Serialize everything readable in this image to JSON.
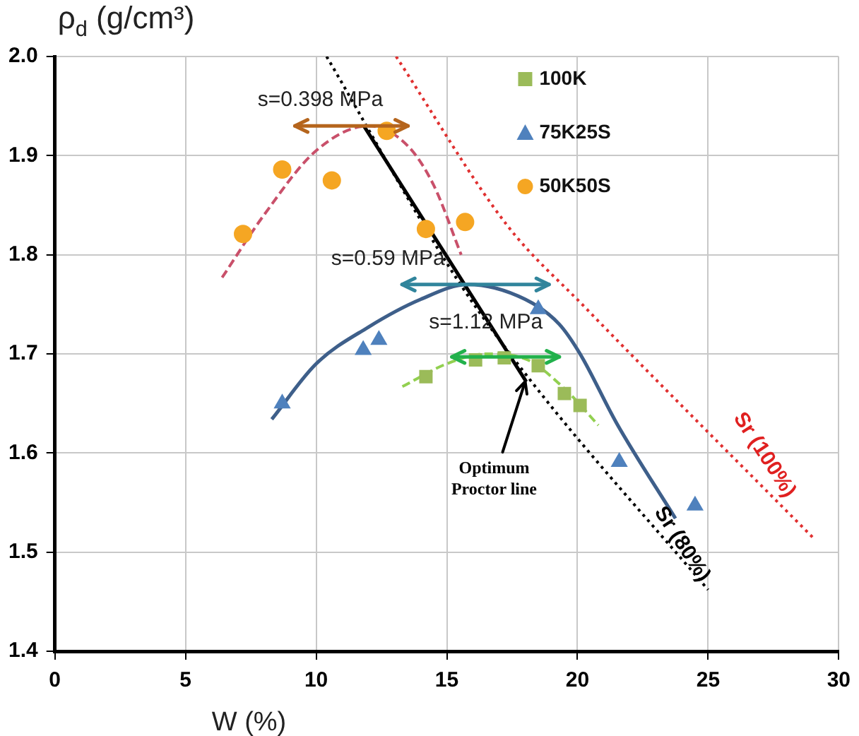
{
  "chart_data": {
    "type": "scatter",
    "xlabel": "W (%)",
    "ylabel": "ρ$_{d}$ (g/cm³)",
    "xlim": [
      0,
      30
    ],
    "xticks": [
      0,
      5,
      10,
      15,
      20,
      25,
      30
    ],
    "ylim": [
      1.4,
      2.0
    ],
    "yticks": [
      1.4,
      1.5,
      1.6,
      1.7,
      1.8,
      1.9,
      {
        "value": 2.0,
        "label": "2.0"
      }
    ],
    "grid": true,
    "legend": "top right",
    "series": [
      {
        "name": "100K",
        "type": "scatter",
        "marker": "square",
        "color": "#9bbb59",
        "x": [
          14.2,
          16.1,
          17.2,
          18.5,
          19.5,
          20.1
        ],
        "values": [
          1.677,
          1.694,
          1.696,
          1.688,
          1.66,
          1.648
        ]
      },
      {
        "name": "75K25S",
        "type": "scatter",
        "marker": "triangle",
        "color": "#4f81bd",
        "x": [
          8.7,
          11.8,
          12.4,
          18.5,
          21.6,
          24.5
        ],
        "values": [
          1.65,
          1.704,
          1.714,
          1.745,
          1.591,
          1.547
        ]
      },
      {
        "name": "50K50S",
        "type": "scatter",
        "marker": "circle",
        "color": "#f5a623",
        "x": [
          7.2,
          8.7,
          10.6,
          12.7,
          14.2,
          15.7
        ],
        "values": [
          1.821,
          1.886,
          1.875,
          1.925,
          1.826,
          1.833
        ]
      },
      {
        "type": "line",
        "line_style": "dashed",
        "color": "#92d050",
        "x": [
          13.3,
          15,
          16.5,
          18,
          19.5,
          20.8
        ],
        "values": [
          1.667,
          1.69,
          1.7,
          1.695,
          1.665,
          1.628
        ]
      },
      {
        "type": "line",
        "line_style": "solid",
        "color": "#3e5f8a",
        "x": [
          8.3,
          10,
          12,
          14,
          15.8,
          18,
          19.3,
          20.1,
          21.5,
          23.75
        ],
        "values": [
          1.634,
          1.69,
          1.727,
          1.755,
          1.77,
          1.755,
          1.73,
          1.7,
          1.63,
          1.534
        ]
      },
      {
        "type": "line",
        "line_style": "dashed",
        "color": "#c9506a",
        "x": [
          6.4,
          8,
          10,
          12,
          13.5,
          14.5,
          15.55
        ],
        "values": [
          1.777,
          1.84,
          1.905,
          1.93,
          1.91,
          1.87,
          1.8
        ]
      },
      {
        "type": "line",
        "line_style": "dotted",
        "color": "#000000",
        "x": [
          10.4,
          15.4,
          18.3,
          25
        ],
        "values": [
          2.0,
          1.775,
          1.67,
          1.462
        ]
      },
      {
        "type": "line",
        "line_style": "dotted",
        "color": "#e03030",
        "x": [
          13.06,
          17.3,
          20.25,
          29
        ],
        "values": [
          2.0,
          1.83,
          1.748,
          1.515
        ]
      },
      {
        "type": "line",
        "line_style": "solid",
        "color": "#000000",
        "x": [
          11.8,
          18.04
        ],
        "values": [
          1.931,
          1.672
        ]
      }
    ],
    "annotations": [
      {
        "text": "s=0.398 MPa",
        "x": 11.35,
        "y": 1.93
      },
      {
        "text": "s=0.59 MPa",
        "x": 16.1,
        "y": 1.77
      },
      {
        "text": "s=1.12 MPa",
        "x": 17.25,
        "y": 1.697
      },
      {
        "text": "Optimum\nProctor line",
        "x": 18.0,
        "y": 1.675
      },
      "Sr (80%)",
      "Sr (100%)"
    ]
  }
}
